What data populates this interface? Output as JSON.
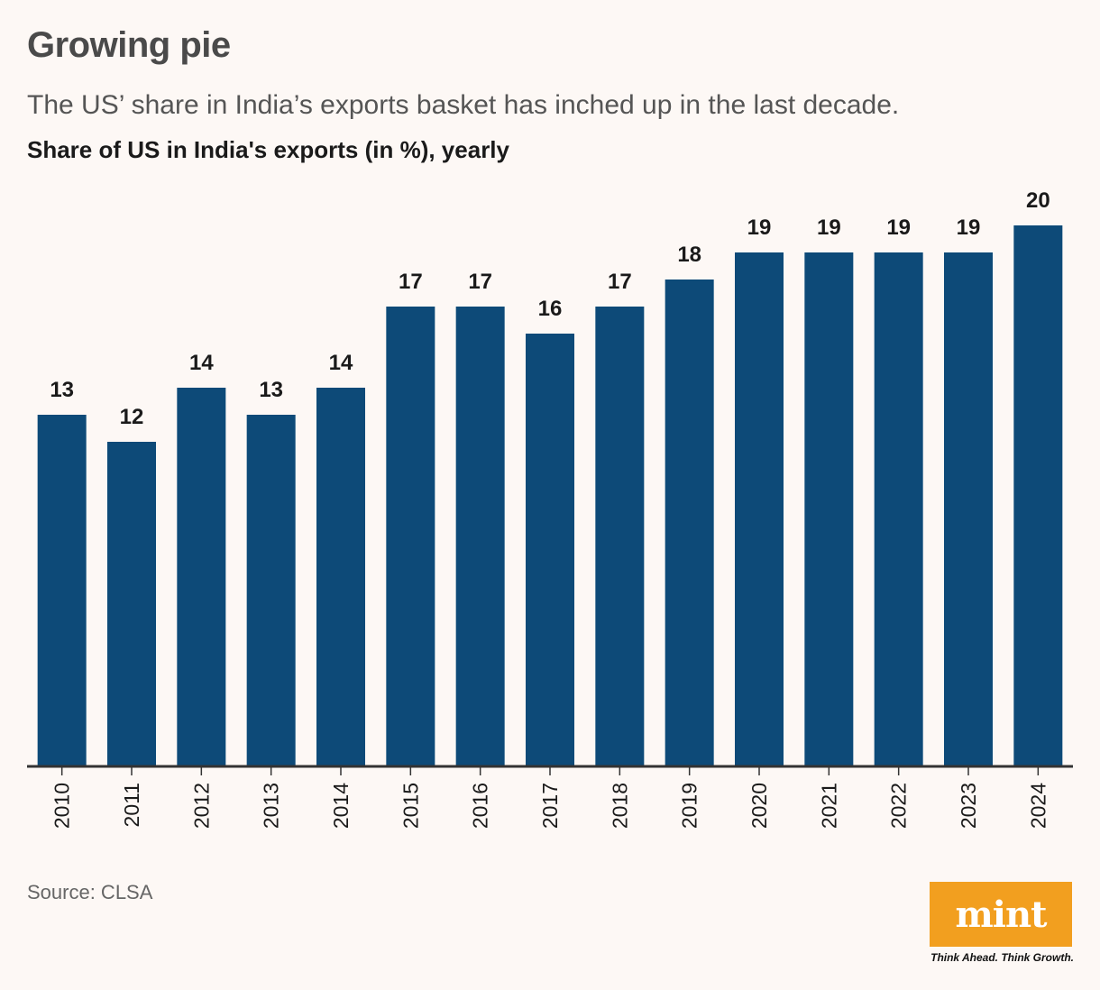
{
  "header": {
    "title": "Growing pie",
    "subtitle": "The US’ share in India’s exports basket has inched up in the last decade.",
    "chart_heading": "Share of US in India's exports (in %), yearly"
  },
  "footer": {
    "source": "Source: CLSA",
    "logo_text": "mint",
    "tagline": "Think Ahead. Think Growth."
  },
  "colors": {
    "bar": "#0d4a78",
    "axis": "#333333",
    "label": "#1a1a1a",
    "logo_bg": "#f29f1f"
  },
  "chart_data": {
    "type": "bar",
    "categories": [
      "2010",
      "2011",
      "2012",
      "2013",
      "2014",
      "2015",
      "2016",
      "2017",
      "2018",
      "2019",
      "2020",
      "2021",
      "2022",
      "2023",
      "2024"
    ],
    "values": [
      13,
      12,
      14,
      13,
      14,
      17,
      17,
      16,
      17,
      18,
      19,
      19,
      19,
      19,
      20
    ],
    "title": "Share of US in India's exports (in %), yearly",
    "xlabel": "",
    "ylabel": "",
    "ylim": [
      0,
      20
    ],
    "data_labels": true,
    "grid": false,
    "legend": "none"
  }
}
